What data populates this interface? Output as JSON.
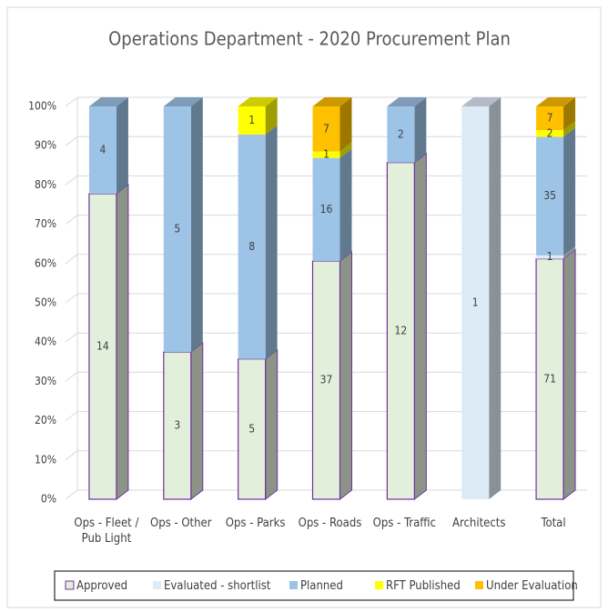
{
  "chart_data": {
    "type": "bar",
    "stacking": "percent",
    "title": "Operations Department  - 2020 Procurement Plan",
    "categories": [
      "Ops - Fleet / Pub Light",
      "Ops - Other",
      "Ops - Parks",
      "Ops - Roads",
      "Ops - Traffic",
      "Architects",
      "Total"
    ],
    "series": [
      {
        "name": "Approved",
        "color": "#e2efda",
        "border": "#7030a0",
        "values": [
          14,
          3,
          5,
          37,
          12,
          null,
          71
        ]
      },
      {
        "name": "Evaluated - shortlist",
        "color": "#ddebf7",
        "values": [
          null,
          null,
          null,
          null,
          null,
          1,
          1
        ]
      },
      {
        "name": "Planned",
        "color": "#9dc3e6",
        "values": [
          4,
          5,
          8,
          16,
          2,
          null,
          35
        ]
      },
      {
        "name": "RFT Published",
        "color": "#ffff00",
        "values": [
          null,
          null,
          1,
          1,
          null,
          null,
          2
        ]
      },
      {
        "name": "Under Evaluation",
        "color": "#ffc000",
        "values": [
          null,
          null,
          null,
          7,
          null,
          null,
          7
        ]
      }
    ],
    "ylim": [
      0,
      100
    ],
    "yticks": [
      {
        "value": 0,
        "label": "0%"
      },
      {
        "value": 10,
        "label": "10%"
      },
      {
        "value": 20,
        "label": "20%"
      },
      {
        "value": 30,
        "label": "30%"
      },
      {
        "value": 40,
        "label": "40%"
      },
      {
        "value": 50,
        "label": "50%"
      },
      {
        "value": 60,
        "label": "60%"
      },
      {
        "value": 70,
        "label": "70%"
      },
      {
        "value": 80,
        "label": "80%"
      },
      {
        "value": 90,
        "label": "90%"
      },
      {
        "value": 100,
        "label": "100%"
      }
    ],
    "grid": true,
    "legend": "bottom"
  }
}
